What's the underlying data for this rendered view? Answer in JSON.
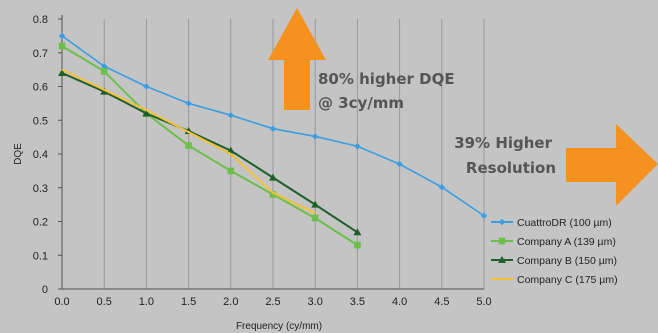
{
  "chart_data": {
    "type": "line",
    "xlabel": "Frequency (cy/mm)",
    "ylabel": "DQE",
    "xlim": [
      0,
      5
    ],
    "ylim": [
      0,
      0.8
    ],
    "x_ticks": [
      "0.0",
      "0.5",
      "1.0",
      "1.5",
      "2.0",
      "2.5",
      "3.0",
      "3.5",
      "4.0",
      "4.5",
      "5.0"
    ],
    "y_ticks": [
      "0",
      "0.1",
      "0.2",
      "0.3",
      "0.4",
      "0.5",
      "0.6",
      "0.7",
      "0.8"
    ],
    "grid": "vertical",
    "legend_position": "right",
    "series": [
      {
        "name": "CuattroDR   (100 µm)",
        "color": "#3a9ee4",
        "marker": "diamond",
        "x": [
          0.0,
          0.5,
          1.0,
          1.5,
          2.0,
          2.5,
          3.0,
          3.5,
          4.0,
          4.5,
          5.0
        ],
        "values": [
          0.75,
          0.66,
          0.6,
          0.55,
          0.515,
          0.475,
          0.452,
          0.423,
          0.37,
          0.302,
          0.217
        ]
      },
      {
        "name": "Company A (139 µm)",
        "color": "#6cbf4b",
        "marker": "square",
        "x": [
          0.0,
          0.5,
          1.0,
          1.5,
          2.0,
          2.5,
          3.0,
          3.5
        ],
        "values": [
          0.72,
          0.645,
          0.52,
          0.425,
          0.35,
          0.28,
          0.21,
          0.13
        ]
      },
      {
        "name": "Company B (150 µm)",
        "color": "#1f5f2b",
        "marker": "triangle",
        "x": [
          0.0,
          0.5,
          1.0,
          1.5,
          2.0,
          2.5,
          3.0,
          3.5
        ],
        "values": [
          0.64,
          0.585,
          0.52,
          0.468,
          0.41,
          0.33,
          0.25,
          0.168
        ]
      },
      {
        "name": "Company C (175 µm)",
        "color": "#f5c237",
        "marker": "none",
        "x": [
          0.0,
          0.5,
          1.0,
          1.5,
          2.0,
          2.5,
          3.0
        ],
        "values": [
          0.65,
          0.59,
          0.53,
          0.465,
          0.4,
          0.285,
          0.225
        ]
      }
    ],
    "annotations": [
      {
        "lines": [
          "80% higher DQE",
          "@ 3cy/mm"
        ],
        "arrow": "up",
        "color": "#f5911f"
      },
      {
        "lines": [
          "39% Higher",
          "Resolution"
        ],
        "arrow": "right",
        "color": "#f5911f"
      }
    ]
  }
}
